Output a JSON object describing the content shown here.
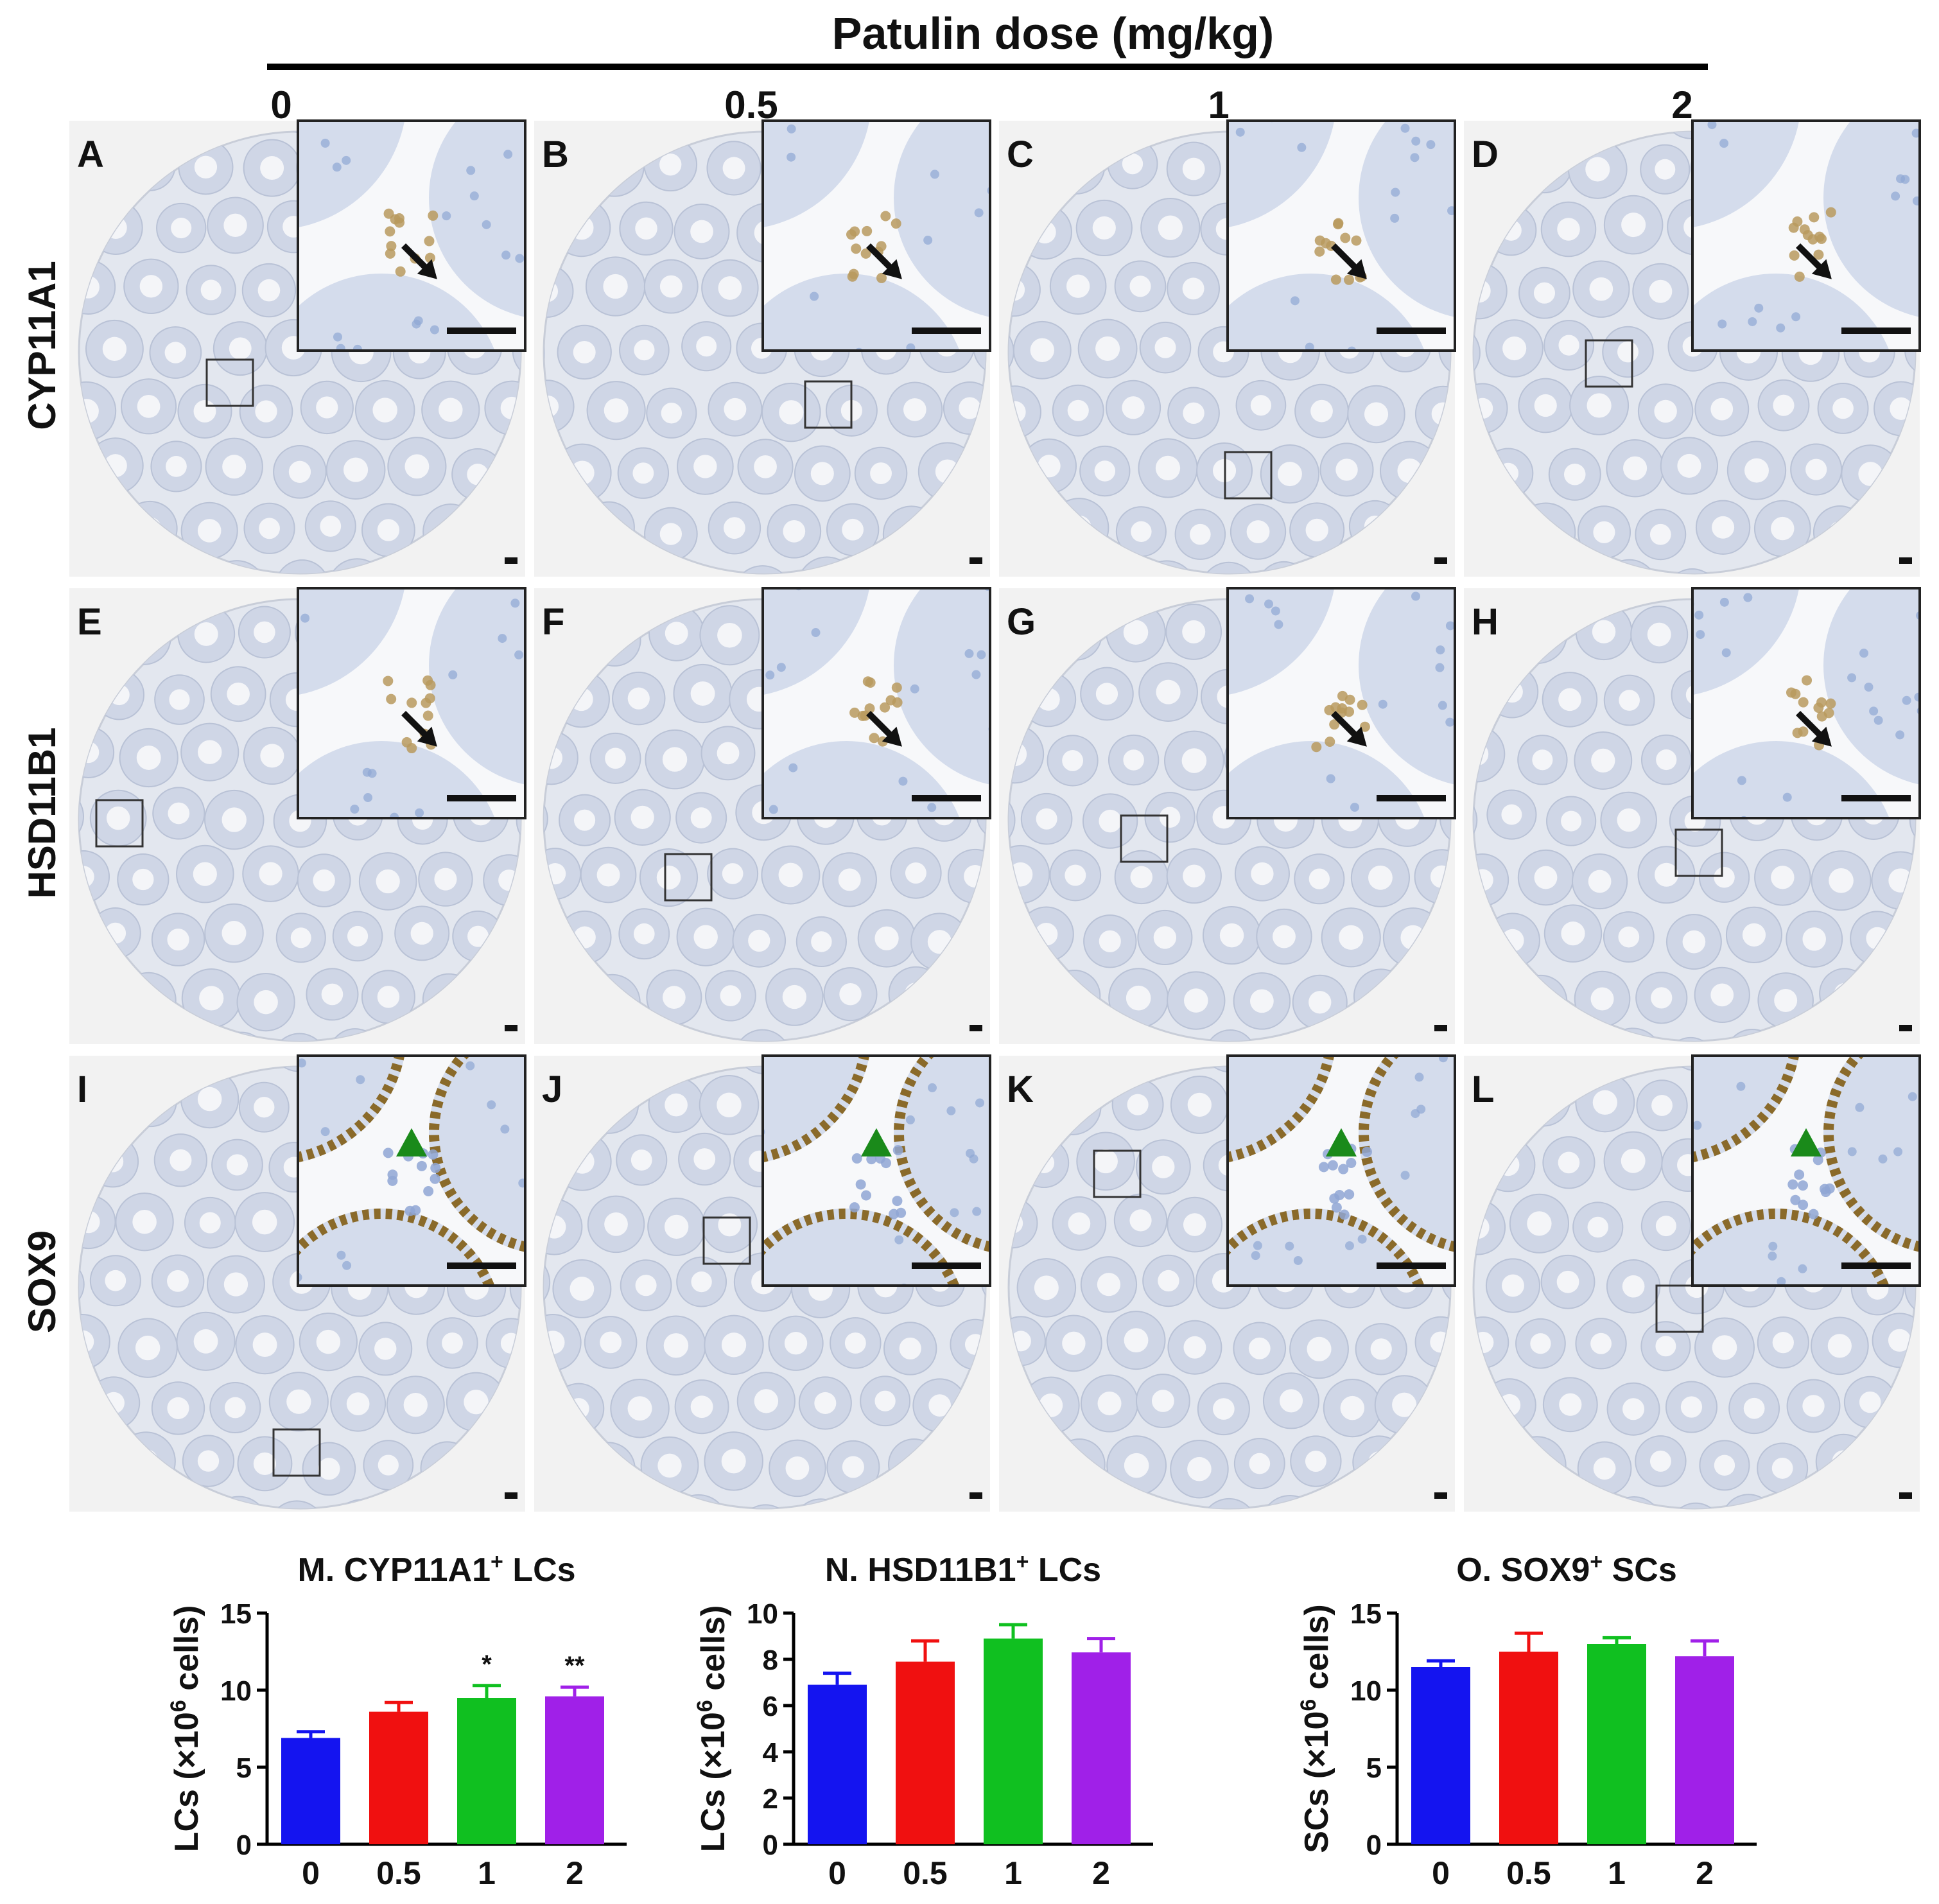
{
  "figure_title": "Patulin dose  (mg/kg)",
  "doses": [
    "0",
    "0.5",
    "1",
    "2"
  ],
  "rows": [
    {
      "marker": "CYP11A1",
      "panels": [
        "A",
        "B",
        "C",
        "D"
      ],
      "indicator": "arrow"
    },
    {
      "marker": "HSD11B1",
      "panels": [
        "E",
        "F",
        "G",
        "H"
      ],
      "indicator": "arrow"
    },
    {
      "marker": "SOX9",
      "panels": [
        "I",
        "J",
        "K",
        "L"
      ],
      "indicator": "arrowhead"
    }
  ],
  "colors": {
    "bars": [
      "#1414f0",
      "#f01010",
      "#10c020",
      "#a020e8"
    ],
    "error_bars": [
      "#1414f0",
      "#f01010",
      "#10c020",
      "#a020e8"
    ],
    "tissue": "#dfe4ee",
    "tubule": "#cfd6e6",
    "leydig_stain": "#b99a5e",
    "sox9_stain": "#8a6a2a",
    "arrow": "#111111",
    "arrowhead": "#1a8a1a"
  },
  "chart_data": [
    {
      "type": "bar",
      "title": "M. CYP11A1",
      "title_sup": "+",
      "title_suffix": " LCs",
      "ylabel_main": "LCs (×10",
      "ylabel_sup": "6",
      "ylabel_end": " cells)",
      "categories": [
        "0",
        "0.5",
        "1",
        "2"
      ],
      "values": [
        6.9,
        8.6,
        9.5,
        9.6
      ],
      "errors": [
        0.4,
        0.6,
        0.8,
        0.6
      ],
      "significance": [
        "",
        "",
        "*",
        "**"
      ],
      "ylim": [
        0,
        15
      ],
      "yticks": [
        "0",
        "5",
        "10",
        "15"
      ]
    },
    {
      "type": "bar",
      "title": "N. HSD11B1",
      "title_sup": "+",
      "title_suffix": " LCs",
      "ylabel_main": "LCs (×10",
      "ylabel_sup": "6",
      "ylabel_end": " cells)",
      "categories": [
        "0",
        "0.5",
        "1",
        "2"
      ],
      "values": [
        6.9,
        7.9,
        8.9,
        8.3
      ],
      "errors": [
        0.5,
        0.9,
        0.6,
        0.6
      ],
      "significance": [
        "",
        "",
        "",
        ""
      ],
      "ylim": [
        0,
        10
      ],
      "yticks": [
        "0",
        "2",
        "4",
        "6",
        "8",
        "10"
      ]
    },
    {
      "type": "bar",
      "title": "O. SOX9",
      "title_sup": "+",
      "title_suffix": " SCs",
      "ylabel_main": "SCs (×10",
      "ylabel_sup": "6",
      "ylabel_end": " cells)",
      "categories": [
        "0",
        "0.5",
        "1",
        "2"
      ],
      "values": [
        11.5,
        12.5,
        13.0,
        12.2
      ],
      "errors": [
        0.4,
        1.2,
        0.4,
        1.0
      ],
      "significance": [
        "",
        "",
        "",
        ""
      ],
      "ylim": [
        0,
        15
      ],
      "yticks": [
        "0",
        "5",
        "10",
        "15"
      ]
    }
  ]
}
